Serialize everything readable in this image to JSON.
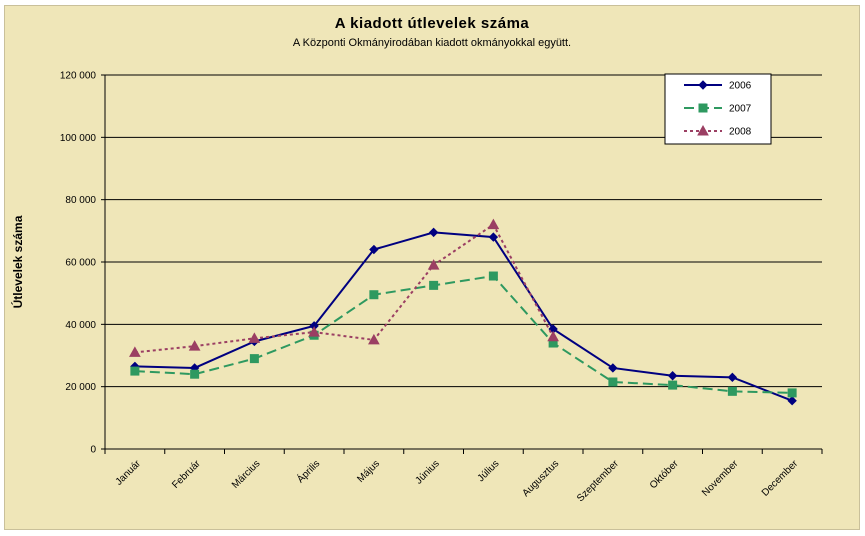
{
  "chart_data": {
    "type": "line",
    "title": "A  kiadott útlevelek száma",
    "subtitle": "A Központi Okmányirodában kiadott okmányokkal együtt.",
    "ylabel": "Útlevelek száma",
    "xlabel": "",
    "ylim": [
      0,
      120000
    ],
    "ytick_values": [
      0,
      20000,
      40000,
      60000,
      80000,
      100000,
      120000
    ],
    "ytick_labels": [
      "0",
      "20 000",
      "40 000",
      "60 000",
      "80 000",
      "100 000",
      "120 000"
    ],
    "grid": true,
    "legend_position": "top-right",
    "categories": [
      "Január",
      "Február",
      "Március",
      "Április",
      "Május",
      "Június",
      "Július",
      "Augusztus",
      "Szeptember",
      "Október",
      "November",
      "December"
    ],
    "series": [
      {
        "name": "2006",
        "color": "#000080",
        "marker": "diamond",
        "dash": "solid",
        "values": [
          26500,
          26000,
          34500,
          39500,
          64000,
          69500,
          68000,
          38500,
          26000,
          23500,
          23000,
          15500
        ]
      },
      {
        "name": "2007",
        "color": "#2e9960",
        "marker": "square",
        "dash": "long-dash",
        "values": [
          25000,
          24000,
          29000,
          36500,
          49500,
          52500,
          55500,
          34000,
          21500,
          20500,
          18500,
          18000
        ]
      },
      {
        "name": "2008",
        "color": "#9b3f63",
        "marker": "triangle",
        "dash": "dotted",
        "values": [
          31000,
          33000,
          35500,
          37500,
          35000,
          59000,
          72000,
          36000,
          null,
          null,
          null,
          null
        ]
      }
    ]
  }
}
